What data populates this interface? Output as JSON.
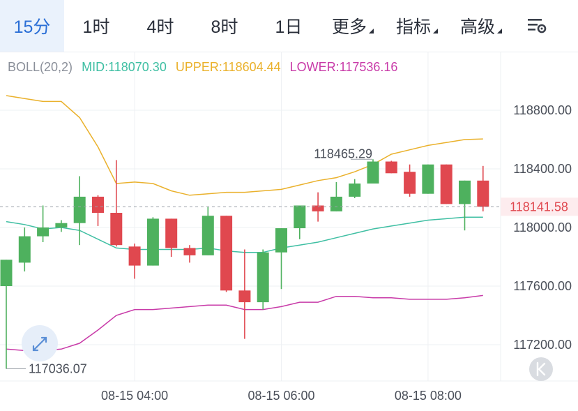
{
  "tabs": [
    {
      "label": "15分",
      "active": true
    },
    {
      "label": "1时"
    },
    {
      "label": "4时"
    },
    {
      "label": "8时"
    },
    {
      "label": "1日"
    },
    {
      "label": "更多",
      "dropdown": true
    },
    {
      "label": "指标",
      "dropdown": true
    },
    {
      "label": "高级",
      "dropdown": true
    }
  ],
  "settings_icon": "chart-settings-icon",
  "indicator": {
    "name": "BOLL(20,2)",
    "mid_label": "MID:",
    "mid_value": "118070.30",
    "upper_label": "UPPER:",
    "upper_value": "118604.44",
    "lower_label": "LOWER:",
    "lower_value": "117536.16"
  },
  "current_price": "118141.58",
  "max_label": "118465.29",
  "min_label": "117036.07",
  "colors": {
    "up": "#4eb15e",
    "down": "#e0484f",
    "mid": "#3fbfa3",
    "upper": "#eab12c",
    "lower": "#c83aa8",
    "active_tab": "#2b6fd6"
  },
  "chart_data": {
    "type": "candlestick",
    "y_ticks": [
      "118800.00",
      "118400.00",
      "118000.00",
      "117600.00",
      "117200.00"
    ],
    "x_ticks": [
      "08-15 04:00",
      "08-15 06:00",
      "08-15 08:00"
    ],
    "candles": [
      {
        "o": 117600,
        "h": 117780,
        "l": 117036,
        "c": 117780
      },
      {
        "o": 117760,
        "h": 118000,
        "l": 117700,
        "c": 117940
      },
      {
        "o": 117940,
        "h": 118150,
        "l": 117900,
        "c": 118000
      },
      {
        "o": 118000,
        "h": 118050,
        "l": 117970,
        "c": 118030
      },
      {
        "o": 118030,
        "h": 118350,
        "l": 117880,
        "c": 118210
      },
      {
        "o": 118210,
        "h": 118220,
        "l": 118010,
        "c": 118100
      },
      {
        "o": 118100,
        "h": 118460,
        "l": 117870,
        "c": 117880
      },
      {
        "o": 117870,
        "h": 117890,
        "l": 117650,
        "c": 117740
      },
      {
        "o": 117740,
        "h": 118070,
        "l": 117740,
        "c": 118060
      },
      {
        "o": 118060,
        "h": 118060,
        "l": 117800,
        "c": 117860
      },
      {
        "o": 117860,
        "h": 117880,
        "l": 117760,
        "c": 117810
      },
      {
        "o": 117810,
        "h": 118140,
        "l": 117810,
        "c": 118080
      },
      {
        "o": 118080,
        "h": 118080,
        "l": 117560,
        "c": 117570
      },
      {
        "o": 117570,
        "h": 117850,
        "l": 117240,
        "c": 117490
      },
      {
        "o": 117490,
        "h": 117850,
        "l": 117440,
        "c": 117830
      },
      {
        "o": 117830,
        "h": 117995,
        "l": 117580,
        "c": 117995
      },
      {
        "o": 117995,
        "h": 118150,
        "l": 117920,
        "c": 118150
      },
      {
        "o": 118150,
        "h": 118240,
        "l": 118040,
        "c": 118110
      },
      {
        "o": 118110,
        "h": 118310,
        "l": 118110,
        "c": 118210
      },
      {
        "o": 118210,
        "h": 118330,
        "l": 118200,
        "c": 118300
      },
      {
        "o": 118300,
        "h": 118465.29,
        "l": 118300,
        "c": 118450
      },
      {
        "o": 118450,
        "h": 118455,
        "l": 118370,
        "c": 118370
      },
      {
        "o": 118380,
        "h": 118430,
        "l": 118210,
        "c": 118230
      },
      {
        "o": 118230,
        "h": 118430,
        "l": 118230,
        "c": 118430
      },
      {
        "o": 118430,
        "h": 118430,
        "l": 118160,
        "c": 118160
      },
      {
        "o": 118160,
        "h": 118320,
        "l": 117980,
        "c": 118320
      },
      {
        "o": 118320,
        "h": 118420,
        "l": 118110,
        "c": 118141.58
      }
    ],
    "boll_upper": [
      118900,
      118880,
      118860,
      118860,
      118750,
      118550,
      118300,
      118310,
      118300,
      118250,
      118220,
      118230,
      118240,
      118240,
      118250,
      118260,
      118290,
      118320,
      118340,
      118380,
      118430,
      118500,
      118530,
      118560,
      118580,
      118600,
      118604.44
    ],
    "boll_mid": [
      118040,
      118020,
      117990,
      118000,
      117980,
      117920,
      117860,
      117850,
      117850,
      117850,
      117850,
      117860,
      117840,
      117830,
      117830,
      117860,
      117880,
      117900,
      117930,
      117960,
      117990,
      118010,
      118030,
      118050,
      118060,
      118070,
      118070.3
    ],
    "boll_lower": [
      117170,
      117160,
      117160,
      117170,
      117210,
      117300,
      117400,
      117440,
      117440,
      117450,
      117460,
      117470,
      117470,
      117440,
      117440,
      117460,
      117490,
      117490,
      117530,
      117530,
      117520,
      117520,
      117510,
      117510,
      117510,
      117520,
      117536.16
    ],
    "ylim": [
      117036,
      118900
    ]
  }
}
